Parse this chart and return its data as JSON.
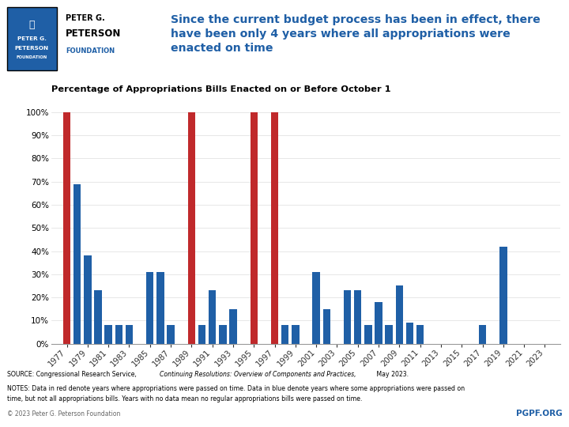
{
  "title": "Since the current budget process has been in effect, there\nhave been only 4 years where all appropriations were\nenacted on time",
  "subtitle": "Percentage of Appropriations Bills Enacted on or Before October 1",
  "years": [
    1977,
    1978,
    1979,
    1980,
    1981,
    1982,
    1983,
    1984,
    1985,
    1986,
    1987,
    1988,
    1989,
    1990,
    1991,
    1992,
    1993,
    1994,
    1995,
    1996,
    1997,
    1998,
    1999,
    2000,
    2001,
    2002,
    2003,
    2004,
    2005,
    2006,
    2007,
    2008,
    2009,
    2010,
    2011,
    2012,
    2013,
    2014,
    2015,
    2016,
    2017,
    2018,
    2019,
    2020,
    2021,
    2022,
    2023
  ],
  "values": [
    100,
    69,
    38,
    23,
    8,
    8,
    8,
    0,
    31,
    31,
    8,
    0,
    100,
    8,
    23,
    8,
    15,
    0,
    100,
    0,
    100,
    8,
    8,
    0,
    31,
    15,
    0,
    23,
    23,
    8,
    18,
    8,
    25,
    9,
    8,
    0,
    0,
    0,
    0,
    0,
    8,
    0,
    42,
    0,
    0,
    0,
    0
  ],
  "bar_colors": [
    "#C0292B",
    "#1F5FA6",
    "#1F5FA6",
    "#1F5FA6",
    "#1F5FA6",
    "#1F5FA6",
    "#1F5FA6",
    null,
    "#1F5FA6",
    "#1F5FA6",
    "#1F5FA6",
    null,
    "#C0292B",
    "#1F5FA6",
    "#1F5FA6",
    "#1F5FA6",
    "#1F5FA6",
    null,
    "#C0292B",
    null,
    "#C0292B",
    "#1F5FA6",
    "#1F5FA6",
    null,
    "#1F5FA6",
    "#1F5FA6",
    null,
    "#1F5FA6",
    "#1F5FA6",
    "#1F5FA6",
    "#1F5FA6",
    "#1F5FA6",
    "#1F5FA6",
    "#1F5FA6",
    "#1F5FA6",
    null,
    null,
    null,
    null,
    null,
    "#1F5FA6",
    null,
    "#1F5FA6",
    null,
    null,
    null,
    null
  ],
  "title_color": "#1F5FA6",
  "blue_color": "#1F5FA6",
  "red_color": "#C0292B",
  "background_color": "#FFFFFF",
  "ytick_values": [
    0,
    10,
    20,
    30,
    40,
    50,
    60,
    70,
    80,
    90,
    100
  ],
  "ytick_labels": [
    "0%",
    "10%",
    "20%",
    "30%",
    "40%",
    "50%",
    "60%",
    "70%",
    "80%",
    "90%",
    "100%"
  ],
  "xtick_years": [
    1977,
    1979,
    1981,
    1983,
    1985,
    1987,
    1989,
    1991,
    1993,
    1995,
    1997,
    1999,
    2001,
    2003,
    2005,
    2007,
    2009,
    2011,
    2013,
    2015,
    2017,
    2019,
    2021,
    2023
  ],
  "logo_text_line1": "PETER G.",
  "logo_text_line2": "PETERSON",
  "logo_text_line3": "FOUNDATION",
  "copyright_text": "© 2023 Peter G. Peterson Foundation",
  "pgpf_text": "PGPF.ORG",
  "source_plain": "SOURCE: Congressional Research Service, ",
  "source_italic": "Continuing Resolutions: Overview of Components and Practices,",
  "source_end": " May 2023.",
  "notes_line1": "NOTES: Data in red denote years where appropriations were passed on time. Data in blue denote years where some appropriations were passed on",
  "notes_line2": "time, but not all appropriations bills. Years with no data mean no regular appropriations bills were passed on time."
}
